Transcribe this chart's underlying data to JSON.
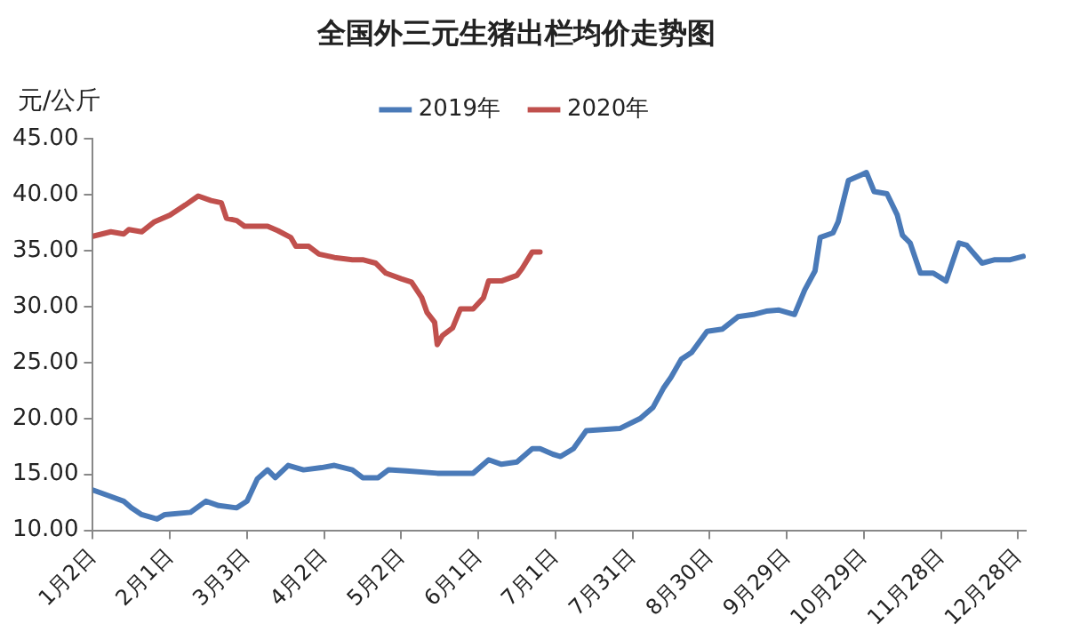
{
  "chart_data": {
    "type": "line",
    "title": "全国外三元生猪出栏均价走势图",
    "ylabel": "元/公斤",
    "xlim": [
      "--01-02",
      "--12-31"
    ],
    "xticks": [
      {
        "value": "--01-02",
        "label": "1月2日"
      },
      {
        "value": "--02-01",
        "label": "2月1日"
      },
      {
        "value": "--03-03",
        "label": "3月3日"
      },
      {
        "value": "--04-02",
        "label": "4月2日"
      },
      {
        "value": "--05-02",
        "label": "5月2日"
      },
      {
        "value": "--06-01",
        "label": "6月1日"
      },
      {
        "value": "--07-01",
        "label": "7月1日"
      },
      {
        "value": "--07-31",
        "label": "7月31日"
      },
      {
        "value": "--08-30",
        "label": "8月30日"
      },
      {
        "value": "--09-29",
        "label": "9月29日"
      },
      {
        "value": "--10-29",
        "label": "10月29日"
      },
      {
        "value": "--11-28",
        "label": "11月28日"
      },
      {
        "value": "--12-28",
        "label": "12月28日"
      }
    ],
    "ylim": [
      10,
      45
    ],
    "yticks": [
      {
        "value": 10,
        "label": "10.00"
      },
      {
        "value": 15,
        "label": "15.00"
      },
      {
        "value": 20,
        "label": "20.00"
      },
      {
        "value": 25,
        "label": "25.00"
      },
      {
        "value": 30,
        "label": "30.00"
      },
      {
        "value": 35,
        "label": "35.00"
      },
      {
        "value": 40,
        "label": "40.00"
      },
      {
        "value": 45,
        "label": "45.00"
      }
    ],
    "grid": false,
    "legend": "top",
    "marker": "none",
    "line_style": "solid",
    "series": [
      {
        "name": "2019年",
        "color": "#4a7ab8",
        "x": [
          "--01-02",
          "--01-08",
          "--01-14",
          "--01-17",
          "--01-21",
          "--01-27",
          "--01-30",
          "--02-09",
          "--02-15",
          "--02-20",
          "--02-27",
          "--03-03",
          "--03-07",
          "--03-11",
          "--03-14",
          "--03-19",
          "--03-25",
          "--04-01",
          "--04-06",
          "--04-13",
          "--04-17",
          "--04-23",
          "--04-27",
          "--05-04",
          "--05-16",
          "--05-30",
          "--06-05",
          "--06-10",
          "--06-16",
          "--06-22",
          "--06-25",
          "--06-30",
          "--07-03",
          "--07-08",
          "--07-13",
          "--07-26",
          "--08-03",
          "--08-08",
          "--08-12",
          "--08-15",
          "--08-19",
          "--08-23",
          "--08-29",
          "--09-04",
          "--09-10",
          "--09-16",
          "--09-21",
          "--09-26",
          "--10-02",
          "--10-06",
          "--10-10",
          "--10-12",
          "--10-17",
          "--10-19",
          "--10-23",
          "--10-28",
          "--10-30",
          "--11-02",
          "--11-07",
          "--11-11",
          "--11-13",
          "--11-16",
          "--11-20",
          "--11-25",
          "--11-30",
          "--12-05",
          "--12-08",
          "--12-14",
          "--12-19",
          "--12-25",
          "--12-30"
        ],
        "values": [
          13.6,
          13.1,
          12.6,
          12.0,
          11.4,
          11.0,
          11.4,
          11.6,
          12.6,
          12.2,
          12.0,
          12.6,
          14.6,
          15.4,
          14.7,
          15.8,
          15.4,
          15.6,
          15.8,
          15.4,
          14.7,
          14.7,
          15.4,
          15.3,
          15.1,
          15.1,
          16.3,
          15.9,
          16.1,
          17.3,
          17.3,
          16.8,
          16.6,
          17.3,
          18.9,
          19.1,
          20.0,
          21.0,
          22.7,
          23.7,
          25.3,
          25.9,
          27.8,
          28.0,
          29.1,
          29.3,
          29.6,
          29.7,
          29.3,
          31.5,
          33.2,
          36.2,
          36.6,
          37.6,
          41.3,
          41.8,
          42.0,
          40.3,
          40.1,
          38.2,
          36.4,
          35.7,
          33.0,
          33.0,
          32.3,
          35.7,
          35.5,
          33.9,
          34.2,
          34.2,
          34.5
        ]
      },
      {
        "name": "2020年",
        "color": "#c0504d",
        "x": [
          "--01-02",
          "--01-09",
          "--01-14",
          "--01-16",
          "--01-21",
          "--01-26",
          "--02-01",
          "--02-07",
          "--02-12",
          "--02-17",
          "--02-21",
          "--02-23",
          "--02-27",
          "--03-02",
          "--03-11",
          "--03-15",
          "--03-20",
          "--03-22",
          "--03-27",
          "--03-31",
          "--04-06",
          "--04-13",
          "--04-17",
          "--04-22",
          "--04-26",
          "--05-02",
          "--05-06",
          "--05-10",
          "--05-12",
          "--05-15",
          "--05-16",
          "--05-18",
          "--05-22",
          "--05-25",
          "--05-30",
          "--06-03",
          "--06-05",
          "--06-10",
          "--06-16",
          "--06-18",
          "--06-22",
          "--06-25"
        ],
        "values": [
          36.3,
          36.7,
          36.5,
          36.9,
          36.7,
          37.6,
          38.2,
          39.1,
          39.9,
          39.5,
          39.3,
          37.9,
          37.7,
          37.2,
          37.2,
          36.8,
          36.2,
          35.4,
          35.4,
          34.7,
          34.4,
          34.2,
          34.2,
          33.9,
          33.0,
          32.5,
          32.2,
          30.8,
          29.5,
          28.6,
          26.6,
          27.4,
          28.1,
          29.8,
          29.8,
          30.8,
          32.3,
          32.3,
          32.8,
          33.4,
          34.9,
          34.9
        ]
      }
    ]
  }
}
